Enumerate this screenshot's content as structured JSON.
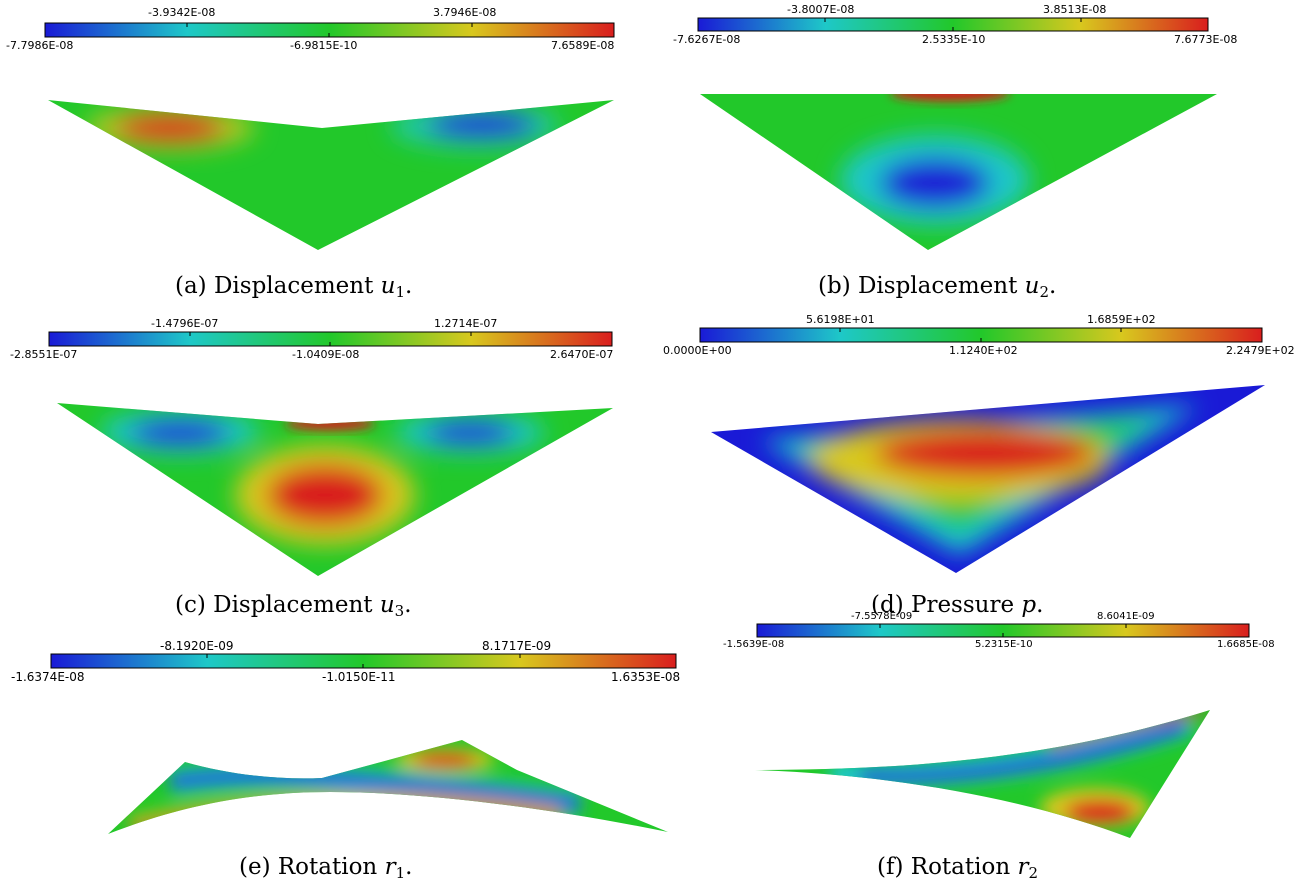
{
  "colormap": [
    "#1a1ad6",
    "#1ec8c8",
    "#22c82a",
    "#d8c81e",
    "#d91e1e"
  ],
  "panels": [
    {
      "id": "a",
      "colorbar": {
        "min": "-7.7986E-08",
        "mid": "-6.9815E-10",
        "max": "7.6589E-08",
        "q1": "-3.9342E-08",
        "q3": "3.7946E-08"
      },
      "caption": {
        "label": "(a) Displacement",
        "var": "u",
        "sub": "1",
        "end": "."
      }
    },
    {
      "id": "b",
      "colorbar": {
        "min": "-7.6267E-08",
        "mid": "2.5335E-10",
        "max": "7.6773E-08",
        "q1": "-3.8007E-08",
        "q3": "3.8513E-08"
      },
      "caption": {
        "label": "(b) Displacement",
        "var": "u",
        "sub": "2",
        "end": "."
      }
    },
    {
      "id": "c",
      "colorbar": {
        "min": "-2.8551E-07",
        "mid": "-1.0409E-08",
        "max": "2.6470E-07",
        "q1": "-1.4796E-07",
        "q3": "1.2714E-07"
      },
      "caption": {
        "label": "(c) Displacement",
        "var": "u",
        "sub": "3",
        "end": "."
      }
    },
    {
      "id": "d",
      "colorbar": {
        "min": "0.0000E+00",
        "mid": "1.1240E+02",
        "max": "2.2479E+02",
        "q1": "5.6198E+01",
        "q3": "1.6859E+02"
      },
      "caption": {
        "label": "(d) Pressure",
        "var": "p",
        "sub": "",
        "end": "."
      }
    },
    {
      "id": "e",
      "colorbar": {
        "min": "-1.6374E-08",
        "mid": "-1.0150E-11",
        "max": "1.6353E-08",
        "q1": "-8.1920E-09",
        "q3": "8.1717E-09"
      },
      "caption": {
        "label": "(e) Rotation",
        "var": "r",
        "sub": "1",
        "end": "."
      }
    },
    {
      "id": "f",
      "colorbar": {
        "min": "-1.5639E-08",
        "mid": "5.2315E-10",
        "max": "1.6685E-08",
        "q1": "-7.5578E-09",
        "q3": "8.6041E-09"
      },
      "caption": {
        "label": "(f) Rotation",
        "var": "r",
        "sub": "2",
        "end": ""
      }
    }
  ]
}
